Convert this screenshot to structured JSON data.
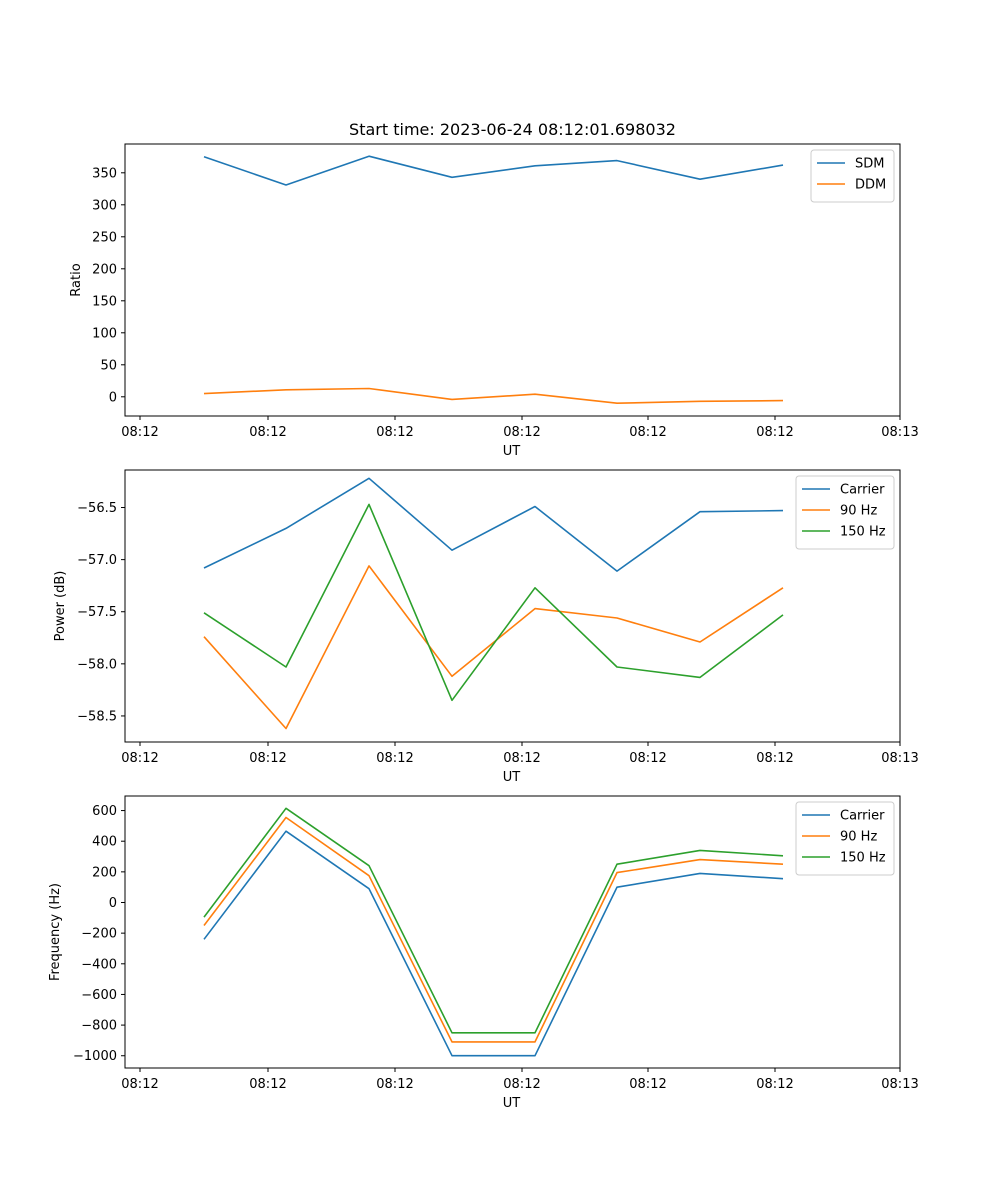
{
  "chart_data": [
    {
      "type": "line",
      "title": "Start time: 2023-06-24 08:12:01.698032",
      "xlabel": "UT",
      "ylabel": "Ratio",
      "x_tick_labels": [
        "08:12",
        "08:12",
        "08:12",
        "08:12",
        "08:12",
        "08:12",
        "08:13"
      ],
      "y_ticks": [
        0,
        50,
        100,
        150,
        200,
        250,
        300,
        350
      ],
      "ylim": [
        -30,
        395
      ],
      "legend_position": "top-right",
      "grid": false,
      "series": [
        {
          "name": "SDM",
          "color": "#1f77b4",
          "values": [
            375,
            331,
            376,
            343,
            361,
            369,
            340,
            362
          ]
        },
        {
          "name": "DDM",
          "color": "#ff7f0e",
          "values": [
            5,
            11,
            13,
            -4,
            4,
            -10,
            -7,
            -6
          ]
        }
      ]
    },
    {
      "type": "line",
      "title": "",
      "xlabel": "UT",
      "ylabel": "Power (dB)",
      "x_tick_labels": [
        "08:12",
        "08:12",
        "08:12",
        "08:12",
        "08:12",
        "08:12",
        "08:13"
      ],
      "y_ticks": [
        -58.5,
        -58.0,
        -57.5,
        -57.0,
        -56.5
      ],
      "y_tick_labels": [
        "−58.5",
        "−58.0",
        "−57.5",
        "−57.0",
        "−56.5"
      ],
      "ylim": [
        -58.75,
        -56.14
      ],
      "legend_position": "top-right",
      "grid": false,
      "series": [
        {
          "name": "Carrier",
          "color": "#1f77b4",
          "values": [
            -57.08,
            -56.7,
            -56.22,
            -56.91,
            -56.49,
            -57.11,
            -56.54,
            -56.53
          ]
        },
        {
          "name": "90 Hz",
          "color": "#ff7f0e",
          "values": [
            -57.74,
            -58.62,
            -57.06,
            -58.12,
            -57.47,
            -57.56,
            -57.79,
            -57.27
          ]
        },
        {
          "name": "150 Hz",
          "color": "#2ca02c",
          "values": [
            -57.51,
            -58.03,
            -56.47,
            -58.35,
            -57.27,
            -58.03,
            -58.13,
            -57.53
          ]
        }
      ]
    },
    {
      "type": "line",
      "title": "",
      "xlabel": "UT",
      "ylabel": "Frequency (Hz)",
      "x_tick_labels": [
        "08:12",
        "08:12",
        "08:12",
        "08:12",
        "08:12",
        "08:12",
        "08:13"
      ],
      "y_ticks": [
        -1000,
        -800,
        -600,
        -400,
        -200,
        0,
        200,
        400,
        600
      ],
      "y_tick_labels": [
        "−1000",
        "−800",
        "−600",
        "−400",
        "−200",
        "0",
        "200",
        "400",
        "600"
      ],
      "ylim": [
        -1080,
        695
      ],
      "legend_position": "top-right",
      "grid": false,
      "series": [
        {
          "name": "Carrier",
          "color": "#1f77b4",
          "values": [
            -240,
            465,
            90,
            -1000,
            -1000,
            100,
            190,
            155
          ]
        },
        {
          "name": "90 Hz",
          "color": "#ff7f0e",
          "values": [
            -150,
            555,
            175,
            -910,
            -910,
            195,
            280,
            250
          ]
        },
        {
          "name": "150 Hz",
          "color": "#2ca02c",
          "values": [
            -95,
            615,
            240,
            -850,
            -850,
            250,
            340,
            305
          ]
        }
      ]
    }
  ]
}
